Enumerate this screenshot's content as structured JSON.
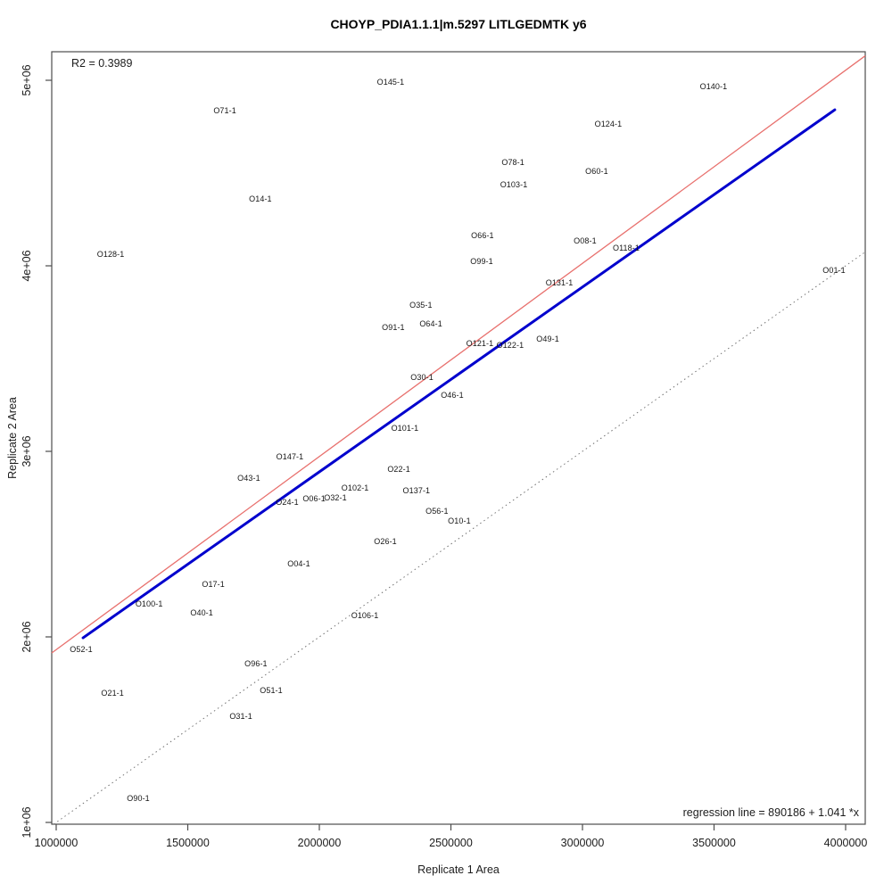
{
  "chart_data": {
    "type": "scatter",
    "title": "CHOYP_PDIA1.1.1|m.5297 LITLGEDMTK y6",
    "xlabel": "Replicate 1 Area",
    "ylabel": "Replicate 2 Area",
    "xlim": [
      983000,
      4075000
    ],
    "ylim": [
      990000,
      5155000
    ],
    "grid": false,
    "x_ticks": {
      "values": [
        1000000,
        1500000,
        2000000,
        2500000,
        3000000,
        3500000,
        4000000
      ],
      "labels": [
        "1000000",
        "1500000",
        "2000000",
        "2500000",
        "3000000",
        "3500000",
        "4000000"
      ]
    },
    "y_ticks": {
      "values": [
        1000000,
        2000000,
        3000000,
        4000000,
        5000000
      ],
      "labels": [
        "1e+06",
        "2e+06",
        "3e+06",
        "4e+06",
        "5e+06"
      ]
    },
    "annotations": {
      "r_squared_text": "R2 = 0.3989",
      "regression_text": "regression line = 890186 + 1.041 *x"
    },
    "r_squared": 0.3989,
    "regression_line": {
      "intercept": 890186,
      "slope": 1.041,
      "color": "#e8706d",
      "style": "solid"
    },
    "identity_line": {
      "intercept": 0,
      "slope": 1,
      "color": "#737373",
      "style": "dotted"
    },
    "fit_line": {
      "x1": 1102000,
      "y1": 1995000,
      "x2": 3959000,
      "y2": 4841000,
      "color": "#0000cd",
      "style": "solid"
    },
    "points": [
      {
        "label": "O145-1",
        "x": 2271000,
        "y": 4991000
      },
      {
        "label": "O140-1",
        "x": 3498000,
        "y": 4967000
      },
      {
        "label": "O71-1",
        "x": 1641000,
        "y": 4837000
      },
      {
        "label": "O124-1",
        "x": 3098000,
        "y": 4765000
      },
      {
        "label": "O78-1",
        "x": 2736000,
        "y": 4558000
      },
      {
        "label": "O60-1",
        "x": 3054000,
        "y": 4510000
      },
      {
        "label": "O103-1",
        "x": 2739000,
        "y": 4438000
      },
      {
        "label": "O14-1",
        "x": 1776000,
        "y": 4361000
      },
      {
        "label": "O66-1",
        "x": 2620000,
        "y": 4164000
      },
      {
        "label": "O08-1",
        "x": 3010000,
        "y": 4135000
      },
      {
        "label": "O118-1",
        "x": 3166000,
        "y": 4096000
      },
      {
        "label": "O128-1",
        "x": 1207000,
        "y": 4063000
      },
      {
        "label": "O99-1",
        "x": 2617000,
        "y": 4024000
      },
      {
        "label": "O131-1",
        "x": 2912000,
        "y": 3909000
      },
      {
        "label": "O01-1",
        "x": 3956000,
        "y": 3976000
      },
      {
        "label": "O35-1",
        "x": 2386000,
        "y": 3789000
      },
      {
        "label": "O64-1",
        "x": 2424000,
        "y": 3688000
      },
      {
        "label": "O91-1",
        "x": 2281000,
        "y": 3668000
      },
      {
        "label": "O121-1",
        "x": 2610000,
        "y": 3582000
      },
      {
        "label": "O122-1",
        "x": 2725000,
        "y": 3572000
      },
      {
        "label": "O49-1",
        "x": 2868000,
        "y": 3606000
      },
      {
        "label": "O30-1",
        "x": 2390000,
        "y": 3399000
      },
      {
        "label": "O46-1",
        "x": 2505000,
        "y": 3303000
      },
      {
        "label": "O101-1",
        "x": 2325000,
        "y": 3125000
      },
      {
        "label": "O147-1",
        "x": 1888000,
        "y": 2971000
      },
      {
        "label": "O22-1",
        "x": 2302000,
        "y": 2904000
      },
      {
        "label": "O43-1",
        "x": 1732000,
        "y": 2856000
      },
      {
        "label": "O102-1",
        "x": 2136000,
        "y": 2803000
      },
      {
        "label": "O137-1",
        "x": 2369000,
        "y": 2789000
      },
      {
        "label": "O24-1",
        "x": 1878000,
        "y": 2726000
      },
      {
        "label": "O06-1",
        "x": 1980000,
        "y": 2745000
      },
      {
        "label": "O32-1",
        "x": 2061000,
        "y": 2750000
      },
      {
        "label": "O56-1",
        "x": 2447000,
        "y": 2678000
      },
      {
        "label": "O10-1",
        "x": 2532000,
        "y": 2625000
      },
      {
        "label": "O26-1",
        "x": 2251000,
        "y": 2514000
      },
      {
        "label": "O04-1",
        "x": 1922000,
        "y": 2394000
      },
      {
        "label": "O17-1",
        "x": 1597000,
        "y": 2284000
      },
      {
        "label": "O100-1",
        "x": 1353000,
        "y": 2178000
      },
      {
        "label": "O40-1",
        "x": 1553000,
        "y": 2130000
      },
      {
        "label": "O106-1",
        "x": 2173000,
        "y": 2116000
      },
      {
        "label": "O52-1",
        "x": 1095000,
        "y": 1933000
      },
      {
        "label": "O96-1",
        "x": 1759000,
        "y": 1856000
      },
      {
        "label": "O21-1",
        "x": 1214000,
        "y": 1697000
      },
      {
        "label": "O51-1",
        "x": 1817000,
        "y": 1712000
      },
      {
        "label": "O31-1",
        "x": 1702000,
        "y": 1572000
      },
      {
        "label": "O90-1",
        "x": 1312000,
        "y": 1130000
      }
    ]
  }
}
